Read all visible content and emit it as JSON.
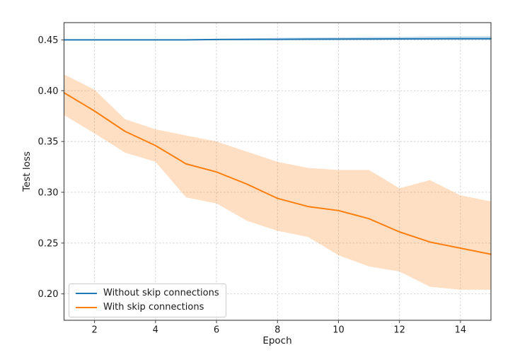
{
  "figure": {
    "xlabel": "Epoch",
    "ylabel": "Test loss"
  },
  "legend": {
    "position": "lower left",
    "entries": [
      {
        "label": "Without skip connections",
        "color": "#1f77b4"
      },
      {
        "label": "With skip connections",
        "color": "#ff7f0e"
      }
    ]
  },
  "colors": {
    "series_blue": "#1f77b4",
    "series_orange": "#ff7f0e",
    "grid": "#c9c9c9",
    "spine": "#3d3d3d",
    "background": "#ffffff"
  },
  "chart_data": {
    "type": "line",
    "title": "",
    "xlabel": "Epoch",
    "ylabel": "Test loss",
    "grid": true,
    "grid_style": "dashed",
    "legend_position": "lower left",
    "xlim": [
      1,
      15
    ],
    "ylim": [
      0.174,
      0.467
    ],
    "xticks": [
      2,
      4,
      6,
      8,
      10,
      12,
      14
    ],
    "yticks": [
      0.2,
      0.25,
      0.3,
      0.35,
      0.4,
      0.45
    ],
    "x": [
      1,
      2,
      3,
      4,
      5,
      6,
      7,
      8,
      9,
      10,
      11,
      12,
      13,
      14,
      15
    ],
    "series": [
      {
        "id": "without-skip-connections",
        "name": "Without skip connections",
        "color": "#1f77b4",
        "band_opacity": 0.25,
        "values": [
          0.45,
          0.45,
          0.45,
          0.45,
          0.45,
          0.4504,
          0.4505,
          0.4506,
          0.4507,
          0.4508,
          0.4509,
          0.451,
          0.4511,
          0.4512,
          0.4512
        ],
        "band_upper": [
          0.4503,
          0.4503,
          0.4504,
          0.4504,
          0.4506,
          0.4512,
          0.4516,
          0.452,
          0.4523,
          0.4525,
          0.4528,
          0.453,
          0.4534,
          0.4535,
          0.4536
        ],
        "band_lower": [
          0.4497,
          0.4497,
          0.4497,
          0.4497,
          0.4497,
          0.4497,
          0.4498,
          0.4498,
          0.4498,
          0.4499,
          0.4499,
          0.45,
          0.45,
          0.45,
          0.45
        ]
      },
      {
        "id": "with-skip-connections",
        "name": "With skip connections",
        "color": "#ff7f0e",
        "band_opacity": 0.25,
        "values": [
          0.398,
          0.38,
          0.36,
          0.346,
          0.328,
          0.32,
          0.308,
          0.294,
          0.286,
          0.282,
          0.274,
          0.261,
          0.251,
          0.245,
          0.239
        ],
        "band_upper": [
          0.416,
          0.401,
          0.372,
          0.362,
          0.356,
          0.35,
          0.34,
          0.33,
          0.324,
          0.322,
          0.322,
          0.304,
          0.312,
          0.297,
          0.291
        ],
        "band_lower": [
          0.376,
          0.358,
          0.339,
          0.33,
          0.295,
          0.289,
          0.272,
          0.262,
          0.256,
          0.238,
          0.227,
          0.222,
          0.207,
          0.204,
          0.204
        ]
      }
    ]
  }
}
